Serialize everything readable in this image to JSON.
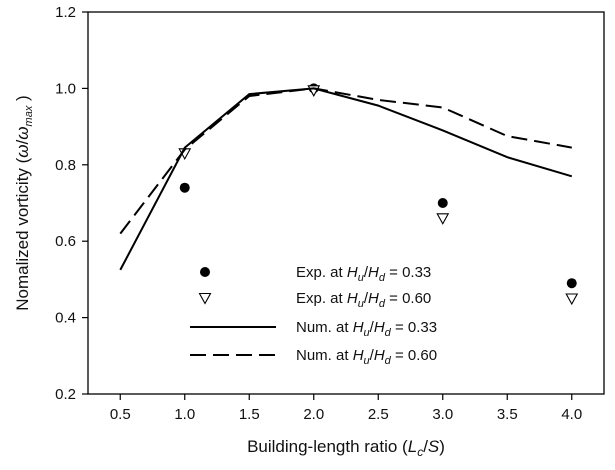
{
  "chart_data": {
    "type": "line",
    "xlabel": {
      "text": "Building-length ratio (",
      "var": "L",
      "sub": "c",
      "rest": "/",
      "var2": "S",
      "close": ")"
    },
    "ylabel": {
      "text": "Nomalized vorticity (",
      "num": "ω",
      "sep": "/",
      "den": "ω",
      "den_sub": "max",
      "close": " )"
    },
    "xlim": [
      0.25,
      4.25
    ],
    "ylim": [
      0.2,
      1.2
    ],
    "xticks": [
      0.5,
      1.0,
      1.5,
      2.0,
      2.5,
      3.0,
      3.5,
      4.0
    ],
    "xtick_labels": [
      "0.5",
      "1.0",
      "1.5",
      "2.0",
      "2.5",
      "3.0",
      "3.5",
      "4.0"
    ],
    "yticks": [
      0.2,
      0.4,
      0.6,
      0.8,
      1.0,
      1.2
    ],
    "ytick_labels": [
      "0.2",
      "0.4",
      "0.6",
      "0.8",
      "1.0",
      "1.2"
    ],
    "grid": false,
    "legend_position": "lower-center",
    "series": [
      {
        "name": {
          "pre": "Exp. at ",
          "a": "H",
          "a_sub": "u",
          "b": "H",
          "b_sub": "d",
          "value": " = 0.33"
        },
        "kind": "scatter",
        "marker": "filled-circle",
        "x": [
          1.0,
          2.0,
          3.0,
          4.0
        ],
        "y": [
          0.74,
          1.0,
          0.7,
          0.49
        ]
      },
      {
        "name": {
          "pre": "Exp. at ",
          "a": "H",
          "a_sub": "u",
          "b": "H",
          "b_sub": "d",
          "value": " = 0.60"
        },
        "kind": "scatter",
        "marker": "open-triangle-down",
        "x": [
          1.0,
          2.0,
          3.0,
          4.0
        ],
        "y": [
          0.83,
          0.995,
          0.66,
          0.45
        ]
      },
      {
        "name": {
          "pre": "Num. at ",
          "a": "H",
          "a_sub": "u",
          "b": "H",
          "b_sub": "d",
          "value": " = 0.33"
        },
        "kind": "line",
        "dash": "solid",
        "x": [
          0.5,
          1.0,
          1.5,
          2.0,
          2.5,
          3.0,
          3.5,
          4.0
        ],
        "y": [
          0.525,
          0.845,
          0.985,
          1.0,
          0.955,
          0.89,
          0.82,
          0.77
        ]
      },
      {
        "name": {
          "pre": "Num. at ",
          "a": "H",
          "a_sub": "u",
          "b": "H",
          "b_sub": "d",
          "value": " = 0.60"
        },
        "kind": "line",
        "dash": "dashed",
        "x": [
          0.5,
          1.0,
          1.5,
          2.0,
          2.5,
          3.0,
          3.5,
          4.0
        ],
        "y": [
          0.62,
          0.84,
          0.98,
          1.0,
          0.97,
          0.95,
          0.875,
          0.845
        ]
      }
    ],
    "colors": {
      "ink": "#000000",
      "background": "#ffffff"
    }
  }
}
